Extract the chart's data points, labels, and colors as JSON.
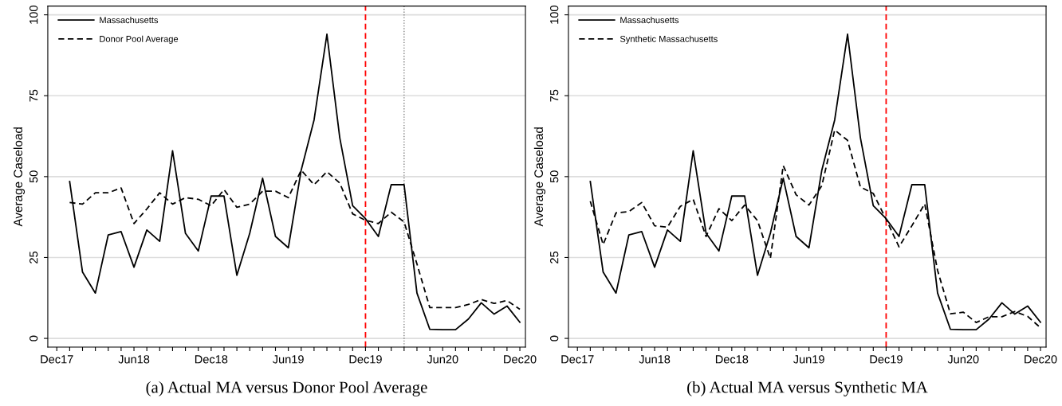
{
  "chart_data": [
    {
      "type": "line",
      "ylabel": "Average Caseload",
      "annotations": [
        "(a) Actual MA versus Donor Pool Average"
      ],
      "grid": "y",
      "legend": "top left",
      "x": [
        "2018-01",
        "2018-02",
        "2018-03",
        "2018-04",
        "2018-05",
        "2018-06",
        "2018-07",
        "2018-08",
        "2018-09",
        "2018-10",
        "2018-11",
        "2018-12",
        "2019-01",
        "2019-02",
        "2019-03",
        "2019-04",
        "2019-05",
        "2019-06",
        "2019-07",
        "2019-08",
        "2019-09",
        "2019-10",
        "2019-11",
        "2019-12",
        "2020-01",
        "2020-02",
        "2020-03",
        "2020-04",
        "2020-05",
        "2020-06",
        "2020-07",
        "2020-08",
        "2020-09",
        "2020-10",
        "2020-11",
        "2020-12"
      ],
      "series": [
        {
          "name": "Massachusetts",
          "color": "#000000",
          "line_style": "solid",
          "values": [
            48.5,
            20.5,
            14,
            32,
            33,
            22,
            33.5,
            30,
            58,
            32.5,
            27,
            44,
            44,
            19.5,
            32.5,
            49.5,
            31.5,
            28,
            52,
            67.5,
            94,
            62,
            41,
            37,
            31.5,
            47.5,
            47.5,
            14,
            2.8,
            2.7,
            2.7,
            6,
            11,
            7.5,
            10,
            5
          ]
        },
        {
          "name": "Donor Pool Average",
          "color": "#000000",
          "line_style": "dashed",
          "values": [
            42,
            41.5,
            45,
            45,
            46.5,
            35.5,
            40,
            45,
            41.5,
            43.5,
            43,
            41,
            46,
            40.5,
            41.5,
            45.5,
            45.5,
            43.5,
            52,
            47.5,
            51.5,
            48,
            38.5,
            36.5,
            35.5,
            39,
            36,
            23,
            9.5,
            9.5,
            9.5,
            10.5,
            12,
            10.8,
            11.7,
            9
          ]
        }
      ],
      "xlim": [
        "2017-11-10",
        "2020-12-14"
      ],
      "ylim": [
        -2.7,
        102.7
      ],
      "yticks": [
        0,
        25,
        50,
        75,
        100
      ],
      "xticks": [
        {
          "value": "2017-12",
          "label": "Dec17"
        },
        {
          "value": "2018-01",
          "label": null
        },
        {
          "value": "2018-02",
          "label": null
        },
        {
          "value": "2018-03",
          "label": null
        },
        {
          "value": "2018-04",
          "label": null
        },
        {
          "value": "2018-05",
          "label": null
        },
        {
          "value": "2018-06",
          "label": "Jun18"
        },
        {
          "value": "2018-07",
          "label": null
        },
        {
          "value": "2018-08",
          "label": null
        },
        {
          "value": "2018-09",
          "label": null
        },
        {
          "value": "2018-10",
          "label": null
        },
        {
          "value": "2018-11",
          "label": null
        },
        {
          "value": "2018-12",
          "label": "Dec18"
        },
        {
          "value": "2019-01",
          "label": null
        },
        {
          "value": "2019-02",
          "label": null
        },
        {
          "value": "2019-03",
          "label": null
        },
        {
          "value": "2019-04",
          "label": null
        },
        {
          "value": "2019-05",
          "label": null
        },
        {
          "value": "2019-06",
          "label": "Jun19"
        },
        {
          "value": "2019-07",
          "label": null
        },
        {
          "value": "2019-08",
          "label": null
        },
        {
          "value": "2019-09",
          "label": null
        },
        {
          "value": "2019-10",
          "label": null
        },
        {
          "value": "2019-11",
          "label": null
        },
        {
          "value": "2019-12",
          "label": "Dec19"
        },
        {
          "value": "2020-01",
          "label": null
        },
        {
          "value": "2020-02",
          "label": null
        },
        {
          "value": "2020-03",
          "label": null
        },
        {
          "value": "2020-04",
          "label": null
        },
        {
          "value": "2020-05",
          "label": null
        },
        {
          "value": "2020-06",
          "label": "Jun20"
        },
        {
          "value": "2020-07",
          "label": null
        },
        {
          "value": "2020-08",
          "label": null
        },
        {
          "value": "2020-09",
          "label": null
        },
        {
          "value": "2020-10",
          "label": null
        },
        {
          "value": "2020-11",
          "label": null
        },
        {
          "value": "2020-12",
          "label": "Dec20"
        }
      ],
      "ref_lines": [
        {
          "axis": "x",
          "value": "2019-12",
          "label": null,
          "color": "#ff0000",
          "line_style": "dashed"
        },
        {
          "axis": "x",
          "value": "2020-03",
          "label": null,
          "color": "#808080",
          "line_style": "dotted"
        }
      ]
    },
    {
      "type": "line",
      "ylabel": "Average Caseload",
      "annotations": [
        "(b) Actual MA versus Synthetic MA"
      ],
      "grid": "y",
      "legend": "top left",
      "x": [
        "2018-01",
        "2018-02",
        "2018-03",
        "2018-04",
        "2018-05",
        "2018-06",
        "2018-07",
        "2018-08",
        "2018-09",
        "2018-10",
        "2018-11",
        "2018-12",
        "2019-01",
        "2019-02",
        "2019-03",
        "2019-04",
        "2019-05",
        "2019-06",
        "2019-07",
        "2019-08",
        "2019-09",
        "2019-10",
        "2019-11",
        "2019-12",
        "2020-01",
        "2020-02",
        "2020-03",
        "2020-04",
        "2020-05",
        "2020-06",
        "2020-07",
        "2020-08",
        "2020-09",
        "2020-10",
        "2020-11",
        "2020-12"
      ],
      "series": [
        {
          "name": "Massachusetts",
          "color": "#000000",
          "line_style": "solid",
          "values": [
            48.5,
            20.5,
            14,
            32,
            33,
            22,
            33.5,
            30,
            58,
            32.5,
            27,
            44,
            44,
            19.5,
            32.5,
            49.5,
            31.5,
            28,
            52,
            67.5,
            94,
            62,
            41,
            37,
            31.5,
            47.5,
            47.5,
            14,
            2.8,
            2.7,
            2.7,
            6,
            11,
            7.5,
            10,
            5
          ]
        },
        {
          "name": "Synthetic Massachusetts",
          "color": "#000000",
          "line_style": "dashed",
          "values": [
            42.4,
            29,
            38.8,
            39.2,
            42,
            34.8,
            34.4,
            40.8,
            43,
            31.5,
            40.1,
            36.4,
            41.2,
            36.4,
            24.7,
            53.4,
            44.4,
            41.2,
            47.2,
            64.4,
            61.2,
            46.8,
            44.8,
            36.8,
            28.3,
            34.8,
            41.6,
            21,
            7.6,
            8.1,
            4.9,
            6.7,
            6.7,
            8.3,
            6.8,
            3.3
          ]
        }
      ],
      "xlim": [
        "2017-11-10",
        "2020-12-14"
      ],
      "ylim": [
        -2.7,
        102.7
      ],
      "yticks": [
        0,
        25,
        50,
        75,
        100
      ],
      "xticks": [
        {
          "value": "2017-12",
          "label": "Dec17"
        },
        {
          "value": "2018-01",
          "label": null
        },
        {
          "value": "2018-02",
          "label": null
        },
        {
          "value": "2018-03",
          "label": null
        },
        {
          "value": "2018-04",
          "label": null
        },
        {
          "value": "2018-05",
          "label": null
        },
        {
          "value": "2018-06",
          "label": "Jun18"
        },
        {
          "value": "2018-07",
          "label": null
        },
        {
          "value": "2018-08",
          "label": null
        },
        {
          "value": "2018-09",
          "label": null
        },
        {
          "value": "2018-10",
          "label": null
        },
        {
          "value": "2018-11",
          "label": null
        },
        {
          "value": "2018-12",
          "label": "Dec18"
        },
        {
          "value": "2019-01",
          "label": null
        },
        {
          "value": "2019-02",
          "label": null
        },
        {
          "value": "2019-03",
          "label": null
        },
        {
          "value": "2019-04",
          "label": null
        },
        {
          "value": "2019-05",
          "label": null
        },
        {
          "value": "2019-06",
          "label": "Jun19"
        },
        {
          "value": "2019-07",
          "label": null
        },
        {
          "value": "2019-08",
          "label": null
        },
        {
          "value": "2019-09",
          "label": null
        },
        {
          "value": "2019-10",
          "label": null
        },
        {
          "value": "2019-11",
          "label": null
        },
        {
          "value": "2019-12",
          "label": "Dec19"
        },
        {
          "value": "2020-01",
          "label": null
        },
        {
          "value": "2020-02",
          "label": null
        },
        {
          "value": "2020-03",
          "label": null
        },
        {
          "value": "2020-04",
          "label": null
        },
        {
          "value": "2020-05",
          "label": null
        },
        {
          "value": "2020-06",
          "label": "Jun20"
        },
        {
          "value": "2020-07",
          "label": null
        },
        {
          "value": "2020-08",
          "label": null
        },
        {
          "value": "2020-09",
          "label": null
        },
        {
          "value": "2020-10",
          "label": null
        },
        {
          "value": "2020-11",
          "label": null
        },
        {
          "value": "2020-12",
          "label": "Dec20"
        }
      ],
      "ref_lines": [
        {
          "axis": "x",
          "value": "2019-12",
          "label": null,
          "color": "#ff0000",
          "line_style": "dashed"
        }
      ]
    }
  ]
}
